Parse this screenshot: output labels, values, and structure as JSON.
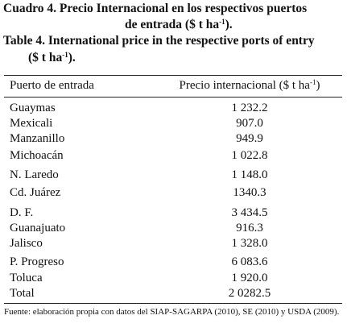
{
  "caption_es": {
    "line1": "Cuadro 4. Precio Internacional en los respectivos puertos",
    "line2": {
      "before": "de entrada ($ t ha",
      "sup": "-1",
      "after": ")."
    }
  },
  "caption_en": {
    "line1": "Table 4. International price in the respective ports of entry",
    "line2": {
      "before": "($ t ha",
      "sup": "-1",
      "after": ")."
    }
  },
  "table": {
    "header": {
      "col1": "Puerto de entrada",
      "col2": {
        "before": "Precio internacional ($ t ha",
        "sup": "-1",
        "after": ")"
      }
    },
    "rows": [
      [
        "Guaymas",
        "1 232.2"
      ],
      [
        "Mexicali",
        "907.0"
      ],
      [
        "Manzanillo",
        "949.9"
      ],
      [
        "Michoacán",
        "1 022.8"
      ],
      [
        "N. Laredo",
        "1 148.0"
      ],
      [
        "Cd. Juárez",
        "1340.3"
      ],
      [
        "D. F.",
        "3 434.5"
      ],
      [
        "Guanajuato",
        "916.3"
      ],
      [
        "Jalisco",
        "1 328.0"
      ],
      [
        "P. Progreso",
        "6 083.6"
      ],
      [
        "Toluca",
        "1 920.0"
      ],
      [
        "Total",
        "2 0282.5"
      ]
    ]
  },
  "footnote": "Fuente: elaboración propia con datos del SIAP-SAGARPA (2010), SE (2010) y USDA (2009)."
}
